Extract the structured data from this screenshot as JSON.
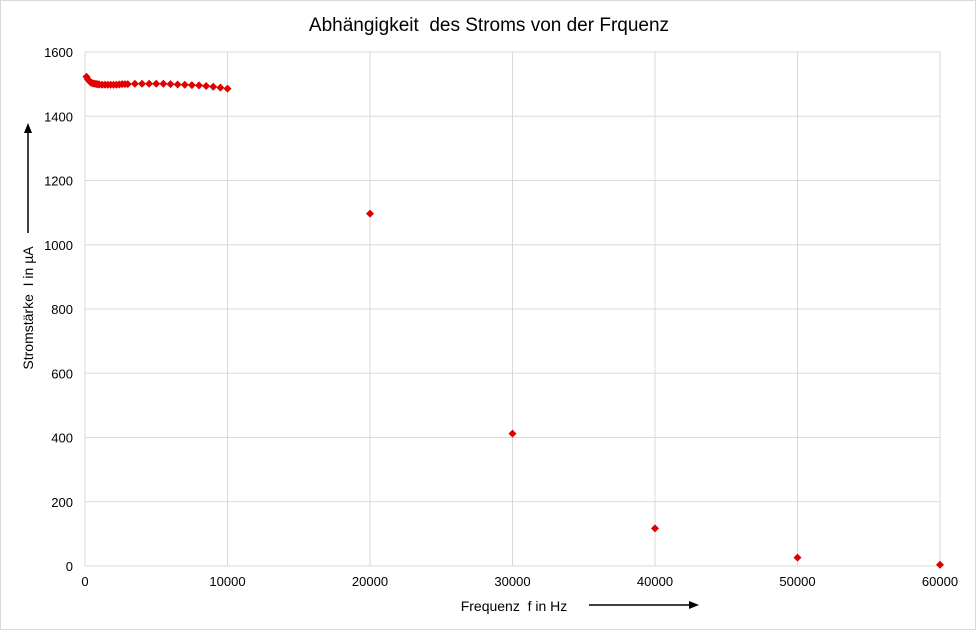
{
  "chart_data": {
    "type": "scatter",
    "title": "Abhängigkeit  des Stroms von der Frquenz",
    "xlabel": "Frequenz  f in Hz",
    "ylabel": "Stromstärke  I in µA",
    "xlim": [
      0,
      60000
    ],
    "ylim": [
      0,
      1600
    ],
    "xticks": [
      0,
      10000,
      20000,
      30000,
      40000,
      50000,
      60000
    ],
    "yticks": [
      0,
      200,
      400,
      600,
      800,
      1000,
      1200,
      1400,
      1600
    ],
    "grid": true,
    "marker": "diamond",
    "marker_color": "#e00000",
    "grid_color": "#d9d9d9",
    "series": [
      {
        "x": [
          100,
          200,
          300,
          400,
          500,
          600,
          700,
          800,
          900,
          1000,
          1200,
          1400,
          1600,
          1800,
          2000,
          2200,
          2400,
          2600,
          2800,
          3000,
          3500,
          4000,
          4500,
          5000,
          5500,
          6000,
          6500,
          7000,
          7500,
          8000,
          8500,
          9000,
          9500,
          10000,
          20000,
          30000,
          40000,
          50000,
          60000
        ],
        "y": [
          1523,
          1515,
          1510,
          1505,
          1503,
          1502,
          1501,
          1500,
          1500,
          1499,
          1498,
          1498,
          1498,
          1498,
          1498,
          1498,
          1499,
          1500,
          1500,
          1500,
          1501,
          1501,
          1501,
          1501,
          1501,
          1500,
          1499,
          1498,
          1497,
          1496,
          1494,
          1492,
          1489,
          1486,
          1097,
          412,
          117,
          26,
          4
        ]
      }
    ]
  }
}
